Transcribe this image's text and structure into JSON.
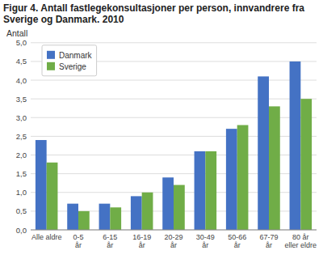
{
  "chart_data": {
    "type": "bar",
    "title": "Figur 4. Antall fastlegekonsultasjoner per person, innvandrere fra\nSverige og Danmark. 2010",
    "y_label": "Antall",
    "categories": [
      "Alle aldre",
      "0-5\når",
      "6-15\når",
      "16-19\når",
      "20-29\når",
      "30-49\når",
      "50-66\når",
      "67-79\når",
      "80 år\neller eldre"
    ],
    "series": [
      {
        "name": "Danmark",
        "color": "#4472C4",
        "values": [
          2.4,
          0.7,
          0.7,
          0.9,
          1.4,
          2.1,
          2.7,
          4.1,
          4.5
        ]
      },
      {
        "name": "Sverige",
        "color": "#70AD47",
        "values": [
          1.8,
          0.5,
          0.6,
          1.0,
          1.2,
          2.1,
          2.8,
          3.3,
          3.5
        ]
      }
    ],
    "ylim": [
      0,
      5.0
    ],
    "yticks": [
      {
        "value": 0.0,
        "label": "0,0"
      },
      {
        "value": 0.5,
        "label": "0,5"
      },
      {
        "value": 1.0,
        "label": "1,0"
      },
      {
        "value": 1.5,
        "label": "1,5"
      },
      {
        "value": 2.0,
        "label": "2,0"
      },
      {
        "value": 2.5,
        "label": "2,5"
      },
      {
        "value": 3.0,
        "label": "3,0"
      },
      {
        "value": 3.5,
        "label": "3,5"
      },
      {
        "value": 4.0,
        "label": "4,0"
      },
      {
        "value": 4.5,
        "label": "4,5"
      },
      {
        "value": 5.0,
        "label": "5,0"
      }
    ],
    "grid": true,
    "legend": "upper left"
  }
}
